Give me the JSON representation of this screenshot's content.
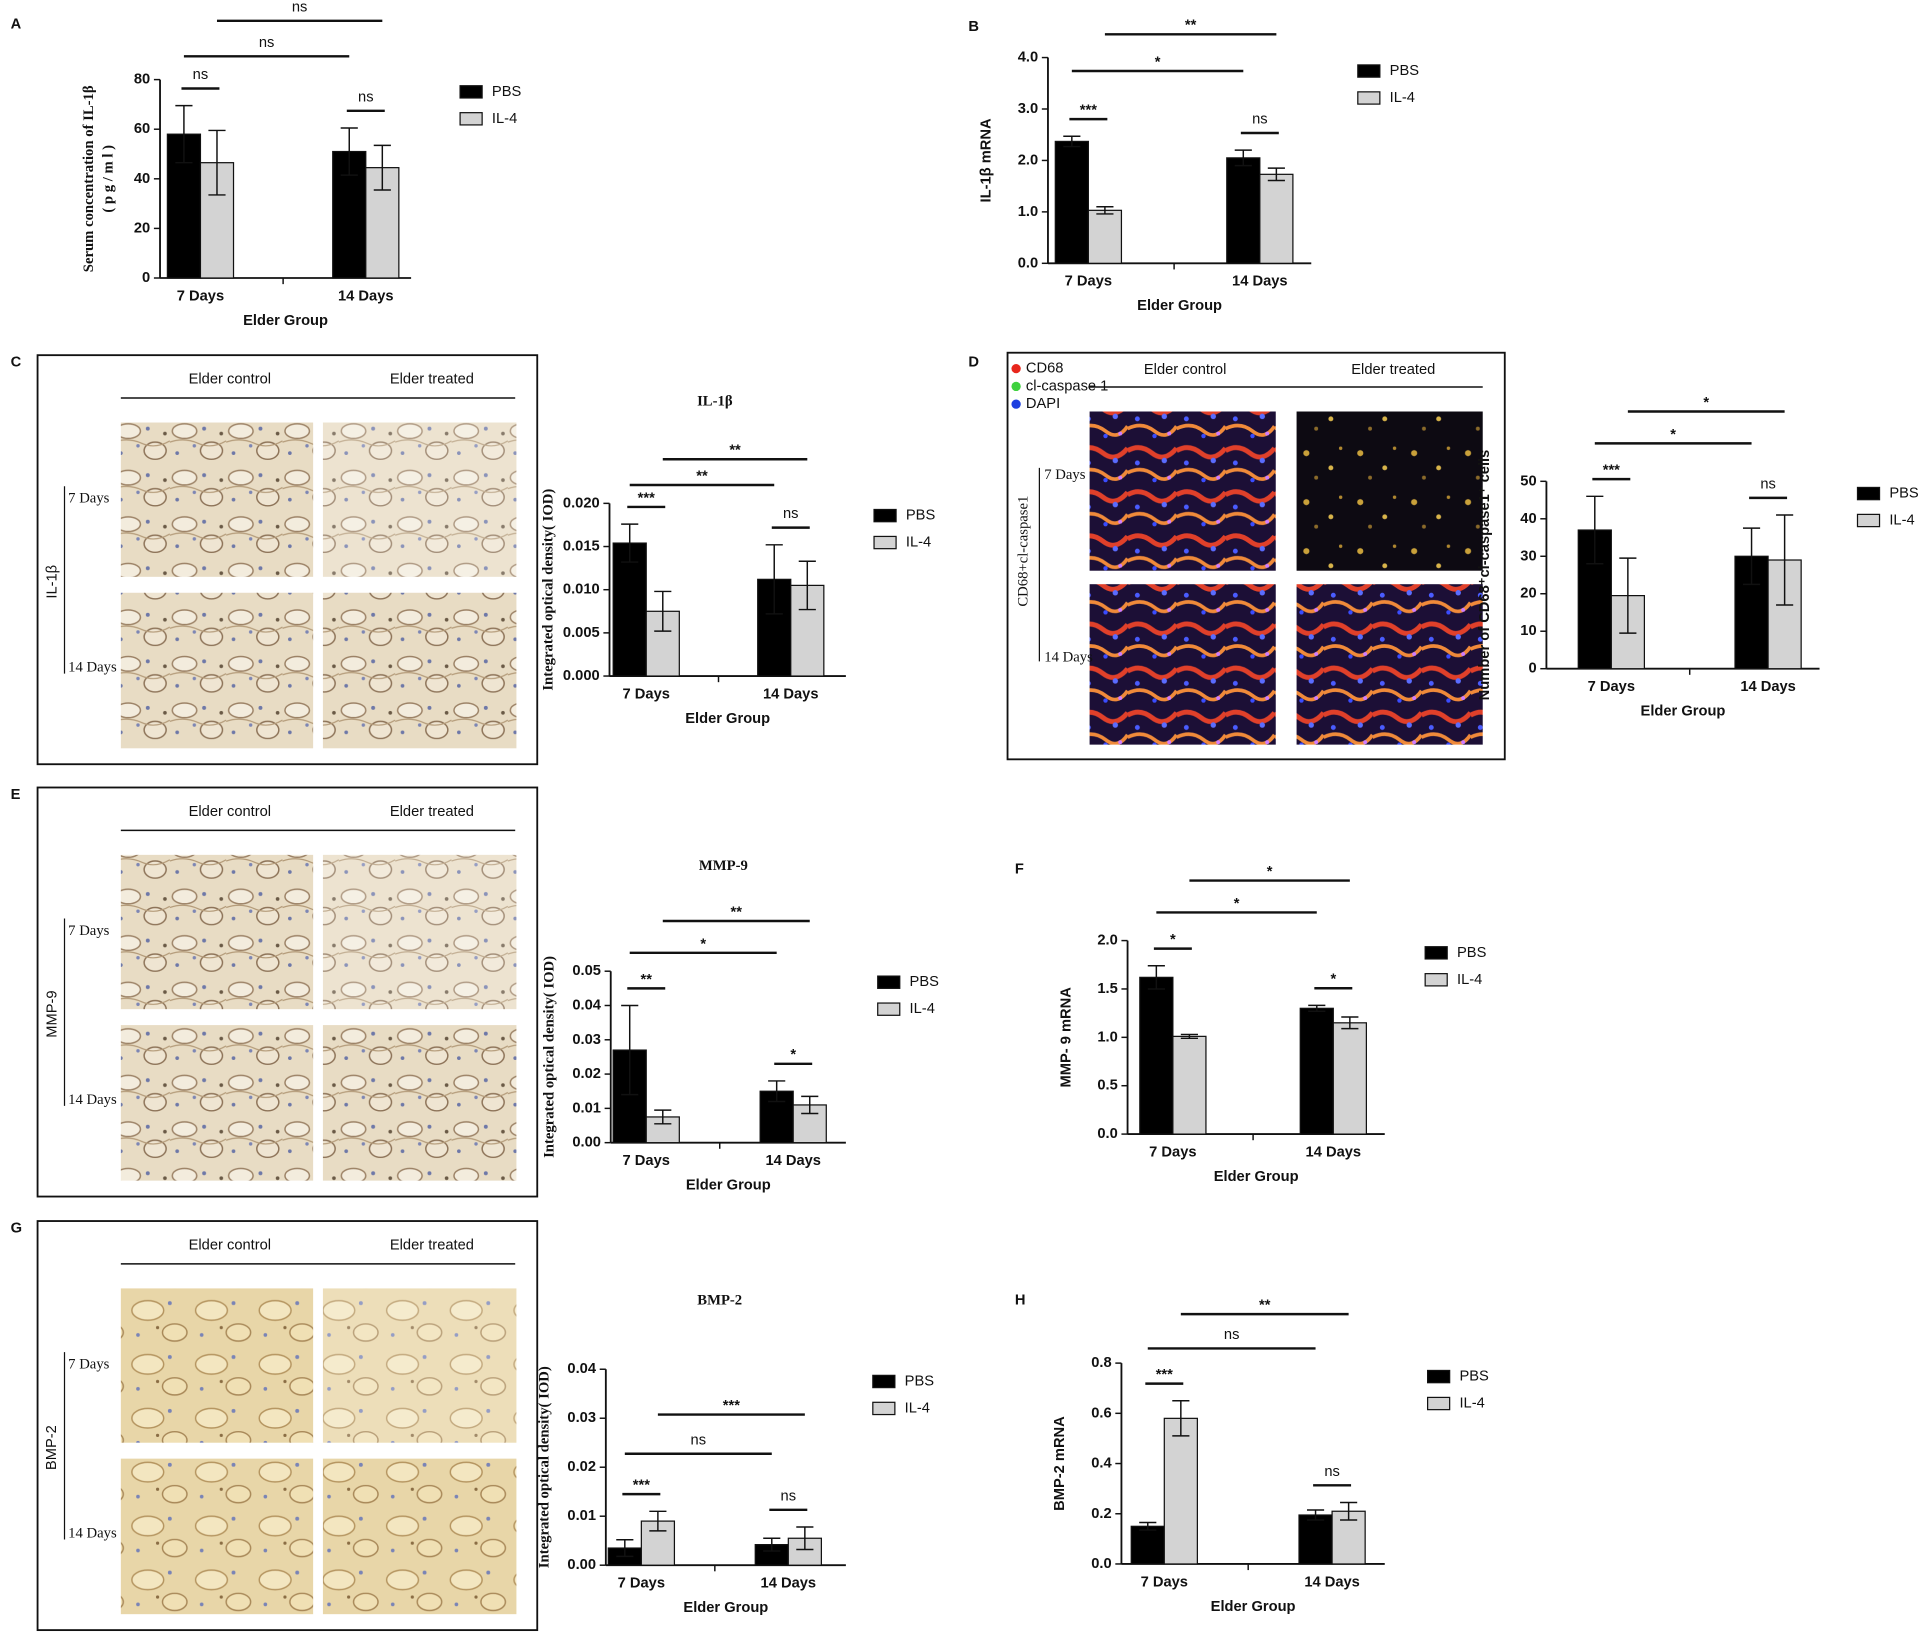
{
  "chart_data": [
    {
      "type": "bar",
      "panel": "A",
      "x_label": "Elder Group",
      "y_label": [
        "Serum concentration of IL-1β",
        "( p g / m l )"
      ],
      "categories": [
        "7 Days",
        "14 Days"
      ],
      "series": [
        {
          "name": "PBS",
          "color": "#000000",
          "values": [
            58,
            51
          ],
          "errors": [
            11.5,
            9.5
          ]
        },
        {
          "name": "IL-4",
          "color": "#d3d3d3",
          "values": [
            46.5,
            44.5
          ],
          "errors": [
            13,
            9
          ]
        }
      ],
      "ylim": [
        0,
        80
      ],
      "yticks": [
        0,
        20,
        40,
        60,
        80
      ],
      "significance": [
        "ns",
        "ns",
        "ns",
        "ns"
      ]
    },
    {
      "type": "bar",
      "panel": "B",
      "x_label": "Elder Group",
      "y_label": [
        "IL-1β mRNA"
      ],
      "categories": [
        "7 Days",
        "14 Days"
      ],
      "series": [
        {
          "name": "PBS",
          "color": "#000000",
          "values": [
            2.37,
            2.05
          ],
          "errors": [
            0.1,
            0.15
          ]
        },
        {
          "name": "IL-4",
          "color": "#d3d3d3",
          "values": [
            1.03,
            1.73
          ],
          "errors": [
            0.07,
            0.12
          ]
        }
      ],
      "ylim": [
        0,
        4
      ],
      "yticks": [
        {
          "value": 0,
          "label": "0.0"
        },
        {
          "value": 1,
          "label": "1.0"
        },
        {
          "value": 2,
          "label": "2.0"
        },
        {
          "value": 3,
          "label": "3.0"
        },
        {
          "value": 4,
          "label": "4.0"
        }
      ],
      "significance": [
        "***",
        "ns",
        "*",
        "**"
      ]
    },
    {
      "type": "bar",
      "title": "IL-1β",
      "x_label": "Elder Group",
      "y_label": [
        "Integrated optical density( IOD)"
      ],
      "categories": [
        "7 Days",
        "14 Days"
      ],
      "series": [
        {
          "name": "PBS",
          "color": "#000000",
          "values": [
            0.0154,
            0.0112
          ],
          "errors": [
            0.0022,
            0.004
          ]
        },
        {
          "name": "IL-4",
          "color": "#d3d3d3",
          "values": [
            0.0075,
            0.0105
          ],
          "errors": [
            0.0023,
            0.0028
          ]
        }
      ],
      "ylim": [
        0,
        0.02
      ],
      "yticks": [
        {
          "value": 0,
          "label": "0.000"
        },
        {
          "value": 0.005,
          "label": "0.005"
        },
        {
          "value": 0.01,
          "label": "0.010"
        },
        {
          "value": 0.015,
          "label": "0.015"
        },
        {
          "value": 0.02,
          "label": "0.020"
        }
      ],
      "significance": [
        "***",
        "ns",
        "**",
        "**"
      ]
    },
    {
      "type": "bar",
      "x_label": "Elder Group",
      "y_label": [
        "Number of CD68⁺cl-caspase1⁺ cells"
      ],
      "categories": [
        "7 Days",
        "14 Days"
      ],
      "series": [
        {
          "name": "PBS",
          "color": "#000000",
          "values": [
            37,
            30
          ],
          "errors": [
            9,
            7.5
          ]
        },
        {
          "name": "IL-4",
          "color": "#d3d3d3",
          "values": [
            19.5,
            29
          ],
          "errors": [
            10,
            12
          ]
        }
      ],
      "ylim": [
        0,
        50
      ],
      "yticks": [
        0,
        10,
        20,
        30,
        40,
        50
      ],
      "significance": [
        "***",
        "ns",
        "*",
        "*"
      ]
    },
    {
      "type": "bar",
      "title": "MMP-9",
      "x_label": "Elder Group",
      "y_label": [
        "Integrated optical density( IOD)"
      ],
      "categories": [
        "7 Days",
        "14 Days"
      ],
      "series": [
        {
          "name": "PBS",
          "color": "#000000",
          "values": [
            0.027,
            0.015
          ],
          "errors": [
            0.013,
            0.003
          ]
        },
        {
          "name": "IL-4",
          "color": "#d3d3d3",
          "values": [
            0.0075,
            0.011
          ],
          "errors": [
            0.002,
            0.0025
          ]
        }
      ],
      "ylim": [
        0,
        0.05
      ],
      "yticks": [
        {
          "value": 0,
          "label": "0.00"
        },
        0.01,
        0.02,
        0.03,
        0.04,
        0.05
      ],
      "significance": [
        "**",
        "*",
        "*",
        "**"
      ]
    },
    {
      "type": "bar",
      "panel": "F",
      "x_label": "Elder Group",
      "y_label": [
        "MMP- 9 mRNA"
      ],
      "categories": [
        "7 Days",
        "14 Days"
      ],
      "series": [
        {
          "name": "PBS",
          "color": "#000000",
          "values": [
            1.62,
            1.3
          ],
          "errors": [
            0.12,
            0.03
          ]
        },
        {
          "name": "IL-4",
          "color": "#d3d3d3",
          "values": [
            1.01,
            1.15
          ],
          "errors": [
            0.02,
            0.06
          ]
        }
      ],
      "ylim": [
        0,
        2
      ],
      "yticks": [
        {
          "value": 0,
          "label": "0.0"
        },
        0.5,
        {
          "value": 1,
          "label": "1.0"
        },
        1.5,
        {
          "value": 2,
          "label": "2.0"
        }
      ],
      "significance": [
        "*",
        "*",
        "*",
        "*"
      ]
    },
    {
      "type": "bar",
      "title": "BMP-2",
      "x_label": "Elder Group",
      "y_label": [
        "Integrated optical density( IOD)"
      ],
      "categories": [
        "7 Days",
        "14 Days"
      ],
      "series": [
        {
          "name": "PBS",
          "color": "#000000",
          "values": [
            0.0035,
            0.0042
          ],
          "errors": [
            0.0017,
            0.0013
          ]
        },
        {
          "name": "IL-4",
          "color": "#d3d3d3",
          "values": [
            0.009,
            0.0055
          ],
          "errors": [
            0.002,
            0.0023
          ]
        }
      ],
      "ylim": [
        0,
        0.04
      ],
      "yticks": [
        {
          "value": 0,
          "label": "0.00"
        },
        0.01,
        0.02,
        0.03,
        0.04
      ],
      "significance": [
        "***",
        "ns",
        "ns",
        "***"
      ]
    },
    {
      "type": "bar",
      "panel": "H",
      "x_label": "Elder Group",
      "y_label": [
        "BMP-2 mRNA"
      ],
      "categories": [
        "7 Days",
        "14 Days"
      ],
      "series": [
        {
          "name": "PBS",
          "color": "#000000",
          "values": [
            0.15,
            0.195
          ],
          "errors": [
            0.015,
            0.02
          ]
        },
        {
          "name": "IL-4",
          "color": "#d3d3d3",
          "values": [
            0.58,
            0.21
          ],
          "errors": [
            0.07,
            0.035
          ]
        }
      ],
      "ylim": [
        0,
        0.8
      ],
      "yticks": [
        {
          "value": 0,
          "label": "0.0"
        },
        0.2,
        0.4,
        0.6,
        0.8
      ],
      "significance": [
        "***",
        "ns",
        "ns",
        "**"
      ]
    }
  ],
  "image_panels": [
    {
      "panel": "C",
      "columns": [
        "Elder control",
        "Elder treated"
      ],
      "marker": "IL-1β",
      "rows": [
        "7 Days",
        "14 Days"
      ]
    },
    {
      "panel": "D",
      "channels": [
        "CD68",
        "cl-caspase 1",
        "DAPI"
      ],
      "columns": [
        "Elder control",
        "Elder treated"
      ],
      "marker": "CD68+cl-caspase1",
      "rows": [
        "7 Days",
        "14 Days"
      ]
    },
    {
      "panel": "E",
      "columns": [
        "Elder control",
        "Elder treated"
      ],
      "marker": "MMP-9",
      "rows": [
        "7 Days",
        "14 Days"
      ]
    },
    {
      "panel": "G",
      "columns": [
        "Elder control",
        "Elder treated"
      ],
      "marker": "BMP-2",
      "rows": [
        "7 Days",
        "14 Days"
      ]
    }
  ]
}
